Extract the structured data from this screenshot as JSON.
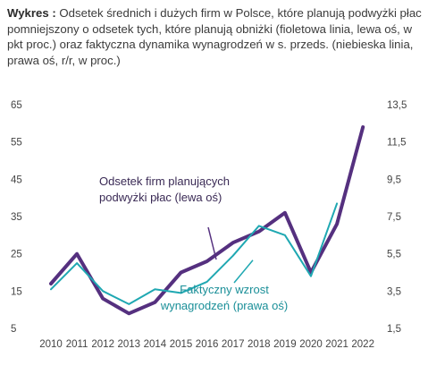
{
  "title": {
    "label": "Wykres",
    "separator": " : ",
    "text": "Odsetek średnich i dużych firm w Polsce, które planują podwyżki płac pomniejszony o odsetek tych, które planują obniżki (fioletowa linia, lewa oś, w pkt proc.) oraz faktyczna dynamika wynagrodzeń w s. przeds. (niebieska linia, prawa oś, r/r, w proc.)"
  },
  "colors": {
    "purple": "#55307f",
    "teal": "#1fa8b2",
    "pointer_purple": "#55307f",
    "pointer_teal": "#1fa8b2"
  },
  "chart_data": {
    "type": "line",
    "x": [
      "2010",
      "2011",
      "2012",
      "2013",
      "2014",
      "2015",
      "2016",
      "2017",
      "2018",
      "2019",
      "2020",
      "2021",
      "2022"
    ],
    "x_ticks": [
      "2010",
      "2011",
      "2012",
      "2013",
      "2014",
      "2015",
      "2016",
      "2017",
      "2018",
      "2019",
      "2020",
      "2021",
      "2022"
    ],
    "y_left": {
      "lim": [
        5,
        65
      ],
      "ticks": [
        "5",
        "15",
        "25",
        "35",
        "45",
        "55",
        "65"
      ]
    },
    "y_right": {
      "lim": [
        1.5,
        13.5
      ],
      "ticks": [
        "1,5",
        "3,5",
        "5,5",
        "7,5",
        "9,5",
        "11,5",
        "13,5"
      ]
    },
    "series": [
      {
        "name": "Odsetek firm planujących podwyżki płac (lewa oś)",
        "axis": "left",
        "color": "#55307f",
        "values": [
          17,
          25,
          13,
          9,
          12,
          20,
          23,
          28,
          31,
          36,
          20,
          33,
          59
        ]
      },
      {
        "name": "Faktyczny wzrost wynagrodzeń (prawa oś)",
        "axis": "right",
        "color": "#1fa8b2",
        "values": [
          3.6,
          5.0,
          3.5,
          2.8,
          3.6,
          3.4,
          4.0,
          5.4,
          7.0,
          6.5,
          4.3,
          8.2,
          null
        ]
      }
    ],
    "annotations": [
      {
        "series": 0,
        "lines": [
          "Odsetek firm planujących",
          "podwyżki płac (lewa oś)"
        ]
      },
      {
        "series": 1,
        "lines": [
          "Faktyczny wzrost",
          "wynagrodzeń (prawa oś)"
        ]
      }
    ],
    "grid": false
  }
}
